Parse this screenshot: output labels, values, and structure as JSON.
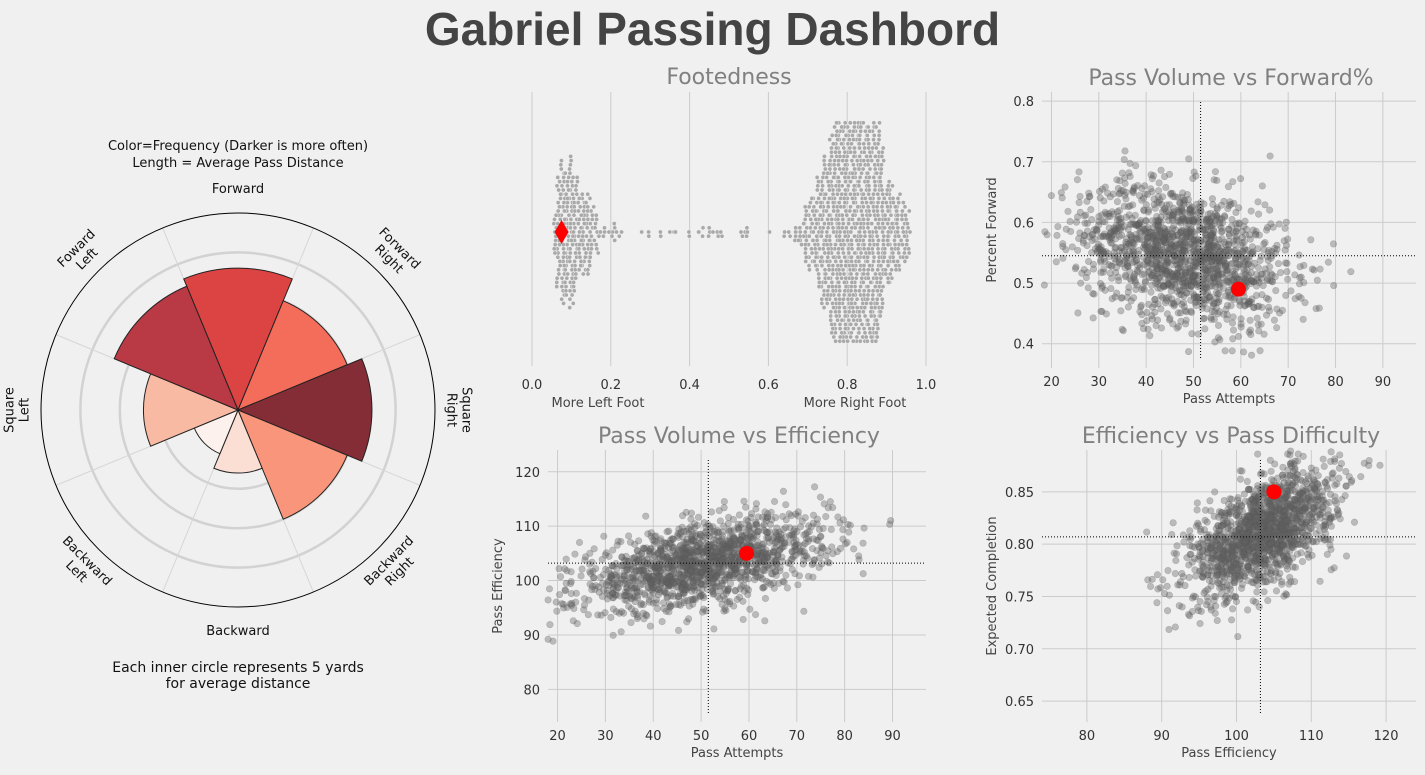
{
  "page": {
    "title": "Gabriel Passing Dashbord"
  },
  "colors": {
    "background": "#f0f0f0",
    "highlight": "#ff0000",
    "dots": "#606060"
  },
  "chart_data": [
    {
      "type": "radial-bar",
      "annotation_top": [
        "Color=Frequency (Darker is more often)",
        "Length = Average Pass Distance"
      ],
      "annotation_bottom": [
        "Each inner circle represents 5 yards",
        "for average distance"
      ],
      "directions": [
        "Forward",
        "Forward Right",
        "Square Right",
        "Backward Right",
        "Backward",
        "Backward Left",
        "Square Left",
        "Foward Left"
      ],
      "dir_labels": [
        [
          "Forward"
        ],
        [
          "Forward",
          "Right"
        ],
        [
          "Square",
          "Right"
        ],
        [
          "Backward",
          "Right"
        ],
        [
          "Backward"
        ],
        [
          "Backward",
          "Left"
        ],
        [
          "Square",
          "Left"
        ],
        [
          "Foward",
          "Left"
        ]
      ],
      "avg_distance_yards": [
        18,
        15,
        17,
        15,
        8,
        6,
        12,
        17
      ],
      "frequency": [
        0.62,
        0.5,
        0.95,
        0.4,
        0.15,
        0.05,
        0.25,
        0.8
      ],
      "colors": [
        "#dc4343",
        "#f46c5a",
        "#842d37",
        "#f8957a",
        "#fbdfd5",
        "#fcf1ed",
        "#f9baa3",
        "#b93a45"
      ],
      "max_yards": 25,
      "ring_step": 5
    },
    {
      "type": "swarm",
      "title": "Footedness",
      "xlim": [
        0,
        1
      ],
      "xticks": [
        "0.0",
        "0.2",
        "0.4",
        "0.6",
        "0.8",
        "1.0"
      ],
      "xlabel_left": "More Left Foot",
      "xlabel_right": "More Right Foot",
      "highlight": 0.075
    },
    {
      "type": "scatter",
      "title": "Pass Volume vs Forward%",
      "xlabel": "Pass Attempts",
      "ylabel": "Percent Forward",
      "xlim": [
        18,
        97
      ],
      "ylim": [
        0.36,
        0.815
      ],
      "xticks": [
        "20",
        "30",
        "40",
        "50",
        "60",
        "70",
        "80",
        "90"
      ],
      "yticks": [
        "0.4",
        "0.5",
        "0.6",
        "0.7",
        "0.8"
      ],
      "mean": [
        51.5,
        0.545
      ],
      "highlight": [
        59.5,
        0.49
      ]
    },
    {
      "type": "scatter",
      "title": "Pass Volume vs Efficiency",
      "xlabel": "Pass Attempts",
      "ylabel": "Pass Efficiency",
      "xlim": [
        18,
        97
      ],
      "ylim": [
        74,
        124
      ],
      "xticks": [
        "20",
        "30",
        "40",
        "50",
        "60",
        "70",
        "80",
        "90"
      ],
      "yticks": [
        "80",
        "90",
        "100",
        "110",
        "120"
      ],
      "mean": [
        51.5,
        103.2
      ],
      "highlight": [
        59.5,
        105
      ]
    },
    {
      "type": "scatter",
      "title": "Efficiency vs Pass Difficulty",
      "xlabel": "Pass Efficiency",
      "ylabel": "Expected Completion",
      "xlim": [
        74,
        124
      ],
      "ylim": [
        0.63,
        0.89
      ],
      "xticks": [
        "80",
        "90",
        "100",
        "110",
        "120"
      ],
      "yticks": [
        "0.65",
        "0.70",
        "0.75",
        "0.80",
        "0.85"
      ],
      "mean": [
        103.2,
        0.807
      ],
      "highlight": [
        105,
        0.85
      ]
    }
  ]
}
